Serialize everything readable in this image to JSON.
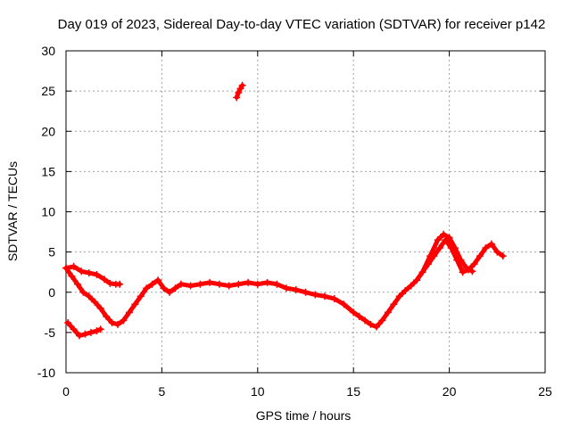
{
  "chart_data": {
    "type": "scatter",
    "title": "Day 019 of 2023, Sidereal Day-to-day VTEC variation (SDTVAR) for receiver p142",
    "xlabel": "GPS time / hours",
    "ylabel": "SDTVAR / TECUs",
    "xlim": [
      0,
      25
    ],
    "ylim": [
      -10,
      30
    ],
    "x_ticks": [
      "0",
      "5",
      "10",
      "15",
      "20",
      "25"
    ],
    "y_ticks": [
      "-10",
      "-5",
      "0",
      "5",
      "10",
      "15",
      "20",
      "25",
      "30"
    ],
    "grid": true,
    "series_color": "#ff0000",
    "series": [
      {
        "name": "sdtvar-main",
        "x": [
          0.0,
          0.3,
          0.6,
          0.9,
          1.2,
          1.5,
          1.8,
          2.1,
          2.4,
          2.7,
          3.0,
          3.3,
          3.6,
          3.9,
          4.2,
          4.5,
          4.8,
          5.1,
          5.4,
          5.7,
          6.0,
          6.5,
          7.0,
          7.5,
          8.0,
          8.5,
          9.0,
          9.5,
          10.0,
          10.5,
          11.0,
          11.5,
          12.0,
          12.5,
          13.0,
          13.5,
          14.0,
          14.5,
          15.0,
          15.3,
          15.6,
          15.9,
          16.2,
          16.5,
          16.8,
          17.1,
          17.4,
          17.7,
          18.0,
          18.3,
          18.6,
          18.9,
          19.2,
          19.5,
          19.8,
          20.1,
          20.4,
          20.7,
          21.0,
          21.3,
          21.6,
          21.9,
          22.2,
          22.5,
          22.8
        ],
        "y": [
          3.0,
          2.0,
          1.0,
          0.0,
          -0.5,
          -1.2,
          -2.0,
          -3.0,
          -3.8,
          -4.0,
          -3.5,
          -2.5,
          -1.5,
          -0.5,
          0.5,
          1.0,
          1.5,
          0.5,
          0.0,
          0.5,
          1.0,
          0.8,
          1.0,
          1.2,
          1.0,
          0.8,
          1.0,
          1.2,
          1.0,
          1.2,
          1.0,
          0.5,
          0.3,
          0.0,
          -0.3,
          -0.5,
          -0.8,
          -1.5,
          -2.5,
          -3.0,
          -3.5,
          -4.0,
          -4.3,
          -3.5,
          -2.5,
          -1.5,
          -0.5,
          0.2,
          0.8,
          1.5,
          2.5,
          3.5,
          4.5,
          5.5,
          6.5,
          5.5,
          4.0,
          2.5,
          2.8,
          3.5,
          4.5,
          5.5,
          6.0,
          5.0,
          4.5
        ]
      },
      {
        "name": "sdtvar-upper-branch",
        "x": [
          0.0,
          0.4,
          0.8,
          1.2,
          1.6,
          2.0,
          2.3,
          2.6,
          2.8
        ],
        "y": [
          3.0,
          3.2,
          2.6,
          2.4,
          2.2,
          1.6,
          1.1,
          1.0,
          1.0
        ]
      },
      {
        "name": "sdtvar-low-branch",
        "x": [
          0.1,
          0.4,
          0.7,
          1.0,
          1.3,
          1.6,
          1.8
        ],
        "y": [
          -3.8,
          -4.6,
          -5.4,
          -5.2,
          -5.0,
          -4.8,
          -4.6
        ]
      },
      {
        "name": "sdtvar-peak-branch",
        "x": [
          18.6,
          19.0,
          19.4,
          19.7,
          20.0,
          20.3,
          20.6,
          20.9,
          21.2
        ],
        "y": [
          2.5,
          4.5,
          6.5,
          7.2,
          6.8,
          5.5,
          4.0,
          3.0,
          2.6
        ]
      },
      {
        "name": "sdtvar-outlier",
        "x": [
          8.9,
          9.0,
          9.1,
          9.2
        ],
        "y": [
          24.2,
          24.8,
          25.3,
          25.7
        ]
      }
    ]
  }
}
